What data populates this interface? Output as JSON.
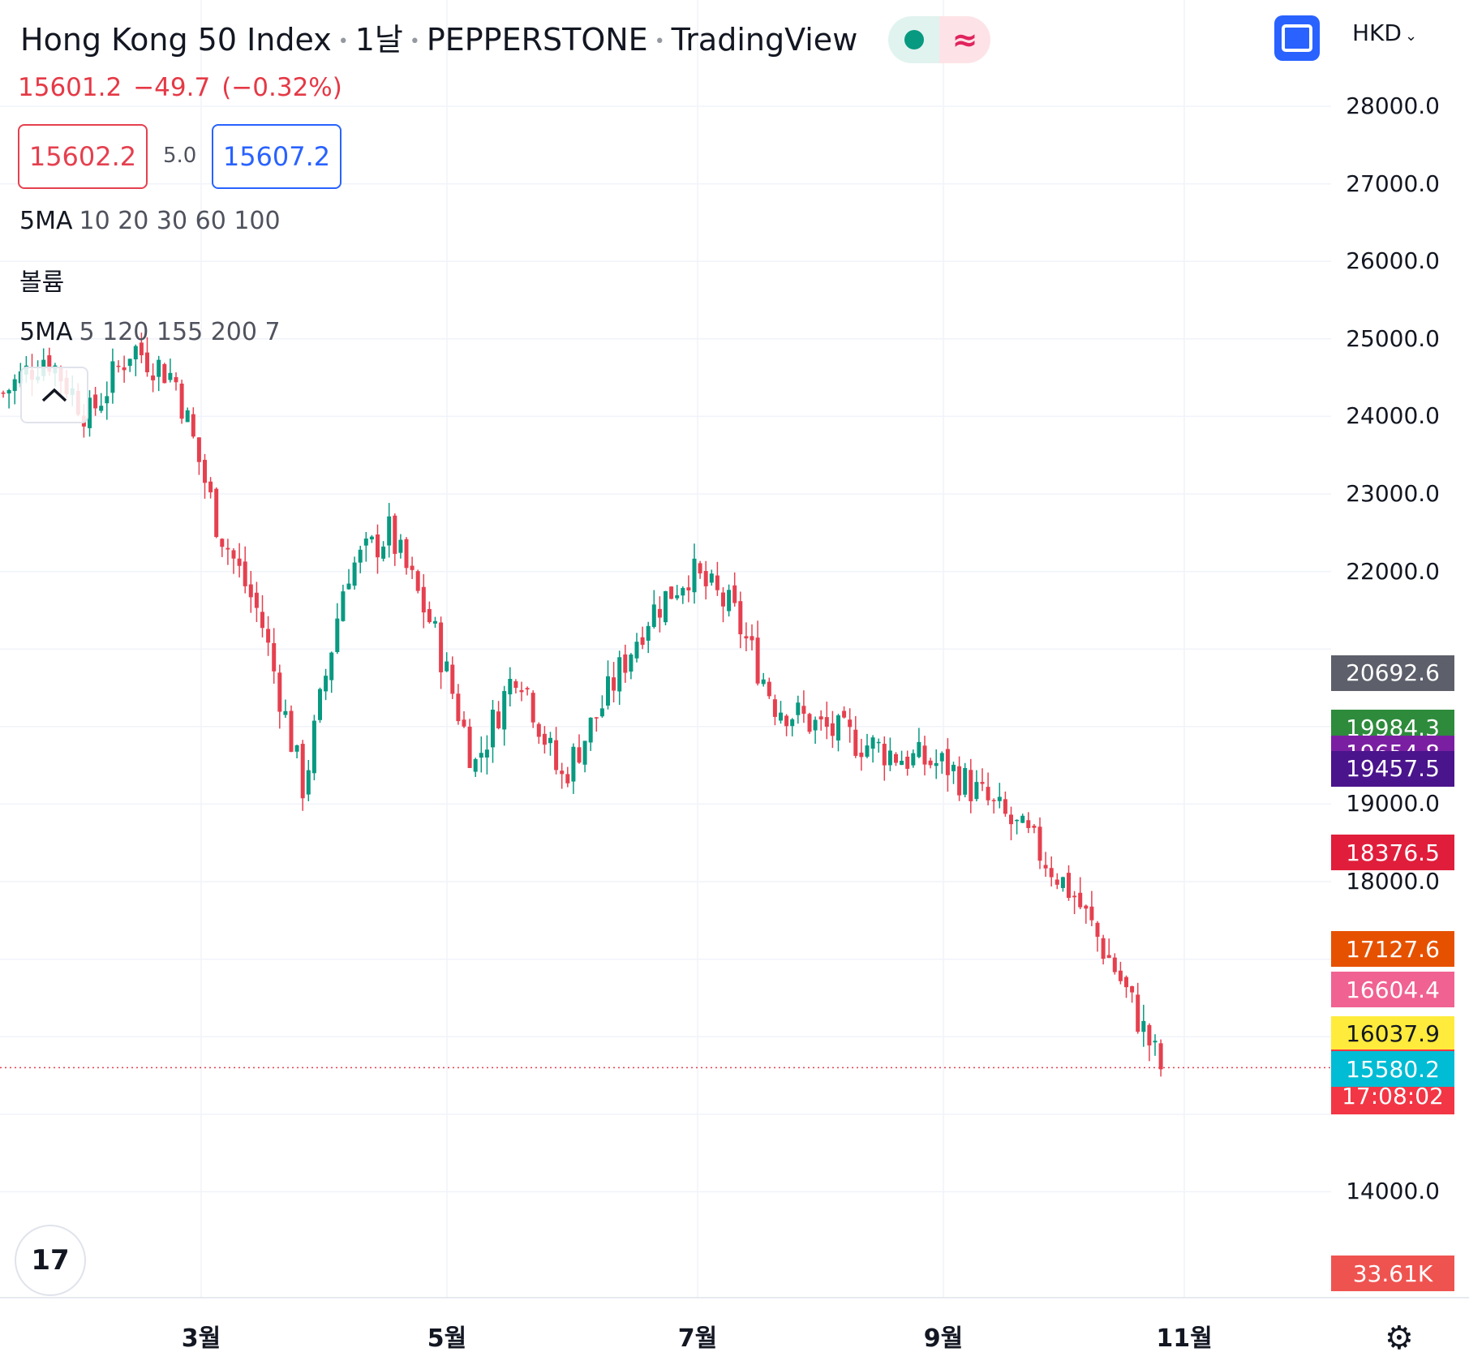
{
  "header": {
    "symbol": "Hong Kong 50 Index",
    "interval": "1날",
    "broker": "PEPPERSTONE",
    "source": "TradingView",
    "last_price": "15601.2",
    "change": "−49.7",
    "change_pct": "(−0.32%)",
    "sell_price": "15602.2",
    "spread": "5.0",
    "buy_price": "15607.2",
    "currency": "HKD",
    "ma_label": "5MA",
    "ma_params": "10 20 30 60 100",
    "volume_label": "볼륨",
    "vol_ma_label": "5MA",
    "vol_ma_params": "5 120 155 200 7",
    "logo_text": "17"
  },
  "colors": {
    "up": "#089981",
    "down": "#e5404f",
    "grid": "#f0f3fa",
    "price_line": "#e5404f"
  },
  "icons": [
    "market-status-icon",
    "delayed-data-icon",
    "fullscreen-icon",
    "chevron-down-icon",
    "collapse-chevron-icon",
    "tradingview-logo-icon",
    "settings-gear-icon"
  ],
  "chart_data": {
    "type": "candlestick",
    "title": "Hong Kong 50 Index · 1날 · PEPPERSTONE · TradingView",
    "currency": "HKD",
    "x_tick_labels": [
      "3월",
      "5월",
      "7월",
      "9월",
      "11월"
    ],
    "y_tick_labels": [
      "28000.0",
      "27000.0",
      "26000.0",
      "25000.0",
      "24000.0",
      "23000.0",
      "22000.0",
      "19000.0",
      "18000.0",
      "14000.0"
    ],
    "ylim": [
      13000,
      29000
    ],
    "grid": true,
    "approx_close_path": [
      {
        "x": "1월 초",
        "close": 24300
      },
      {
        "x": "1월 중",
        "close": 24800
      },
      {
        "x": "1월 말",
        "close": 24000
      },
      {
        "x": "2월 초",
        "close": 24900
      },
      {
        "x": "2월 중",
        "close": 24500
      },
      {
        "x": "3월 초",
        "close": 22600
      },
      {
        "x": "3월 중",
        "close": 21400
      },
      {
        "x": "3월 말",
        "close": 19200
      },
      {
        "x": "4월 초",
        "close": 22000
      },
      {
        "x": "4월 중",
        "close": 22500
      },
      {
        "x": "4월 말",
        "close": 21300
      },
      {
        "x": "5월 초",
        "close": 19500
      },
      {
        "x": "5월 중",
        "close": 20800
      },
      {
        "x": "5월 말",
        "close": 19300
      },
      {
        "x": "6월 초",
        "close": 20300
      },
      {
        "x": "6월 중",
        "close": 21400
      },
      {
        "x": "6월 말",
        "close": 22000
      },
      {
        "x": "7월 초",
        "close": 21500
      },
      {
        "x": "7월 중",
        "close": 20300
      },
      {
        "x": "7월 말",
        "close": 20000
      },
      {
        "x": "8월 중",
        "close": 19800
      },
      {
        "x": "8월 말",
        "close": 19600
      },
      {
        "x": "9월 초",
        "close": 19500
      },
      {
        "x": "9월 중",
        "close": 19000
      },
      {
        "x": "9월 말",
        "close": 18500
      },
      {
        "x": "10월 초",
        "close": 17800
      },
      {
        "x": "10월 중",
        "close": 16800
      },
      {
        "x": "10월 말",
        "close": 15600
      }
    ],
    "price_badges": [
      {
        "value": "20692.6",
        "color": "#5d606b"
      },
      {
        "value": "19984.3",
        "color": "#2e8b3c"
      },
      {
        "value": "19654.8",
        "color": "#7b1fa2"
      },
      {
        "value": "19457.5",
        "color": "#4a148c"
      },
      {
        "value": "18376.5",
        "color": "#e01e3c"
      },
      {
        "value": "17127.6",
        "color": "#e65100"
      },
      {
        "value": "16604.4",
        "color": "#f06292"
      },
      {
        "value": "16037.9",
        "color": "#ffeb3b"
      },
      {
        "value": "15601.2",
        "sub": "17:08:02",
        "color": "#f23645"
      },
      {
        "value": "15580.2",
        "color": "#00bcd4"
      },
      {
        "value": "33.61K",
        "color": "#ef5350"
      }
    ]
  }
}
